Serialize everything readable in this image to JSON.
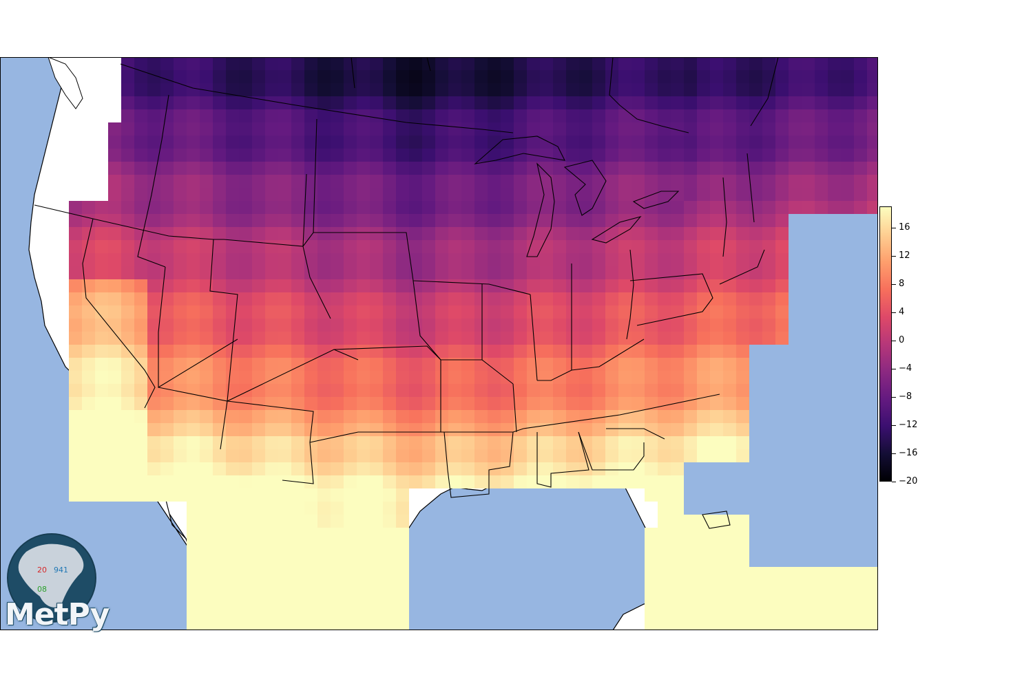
{
  "map": {
    "projection": "lambert-conformal-conus",
    "ocean_color": "#97b6e1",
    "land_color": "#ffffff",
    "border_color": "#000000",
    "field": "temperature grid (colored cells)",
    "colormap": "magma"
  },
  "colorbar": {
    "min": -20,
    "max": 19,
    "ticks": [
      "−20",
      "−16",
      "−12",
      "−8",
      "−4",
      "0",
      "4",
      "8",
      "12",
      "16"
    ],
    "tick_values": [
      -20,
      -16,
      -12,
      -8,
      -4,
      0,
      4,
      8,
      12,
      16
    ]
  },
  "logo": {
    "wordmark": "MetPy",
    "station_temp": "20",
    "station_pressure": "941",
    "station_dewpoint": "08",
    "temp_color": "#d62728",
    "pressure_color": "#1f77b4",
    "dewpoint_color": "#2ca02c"
  }
}
